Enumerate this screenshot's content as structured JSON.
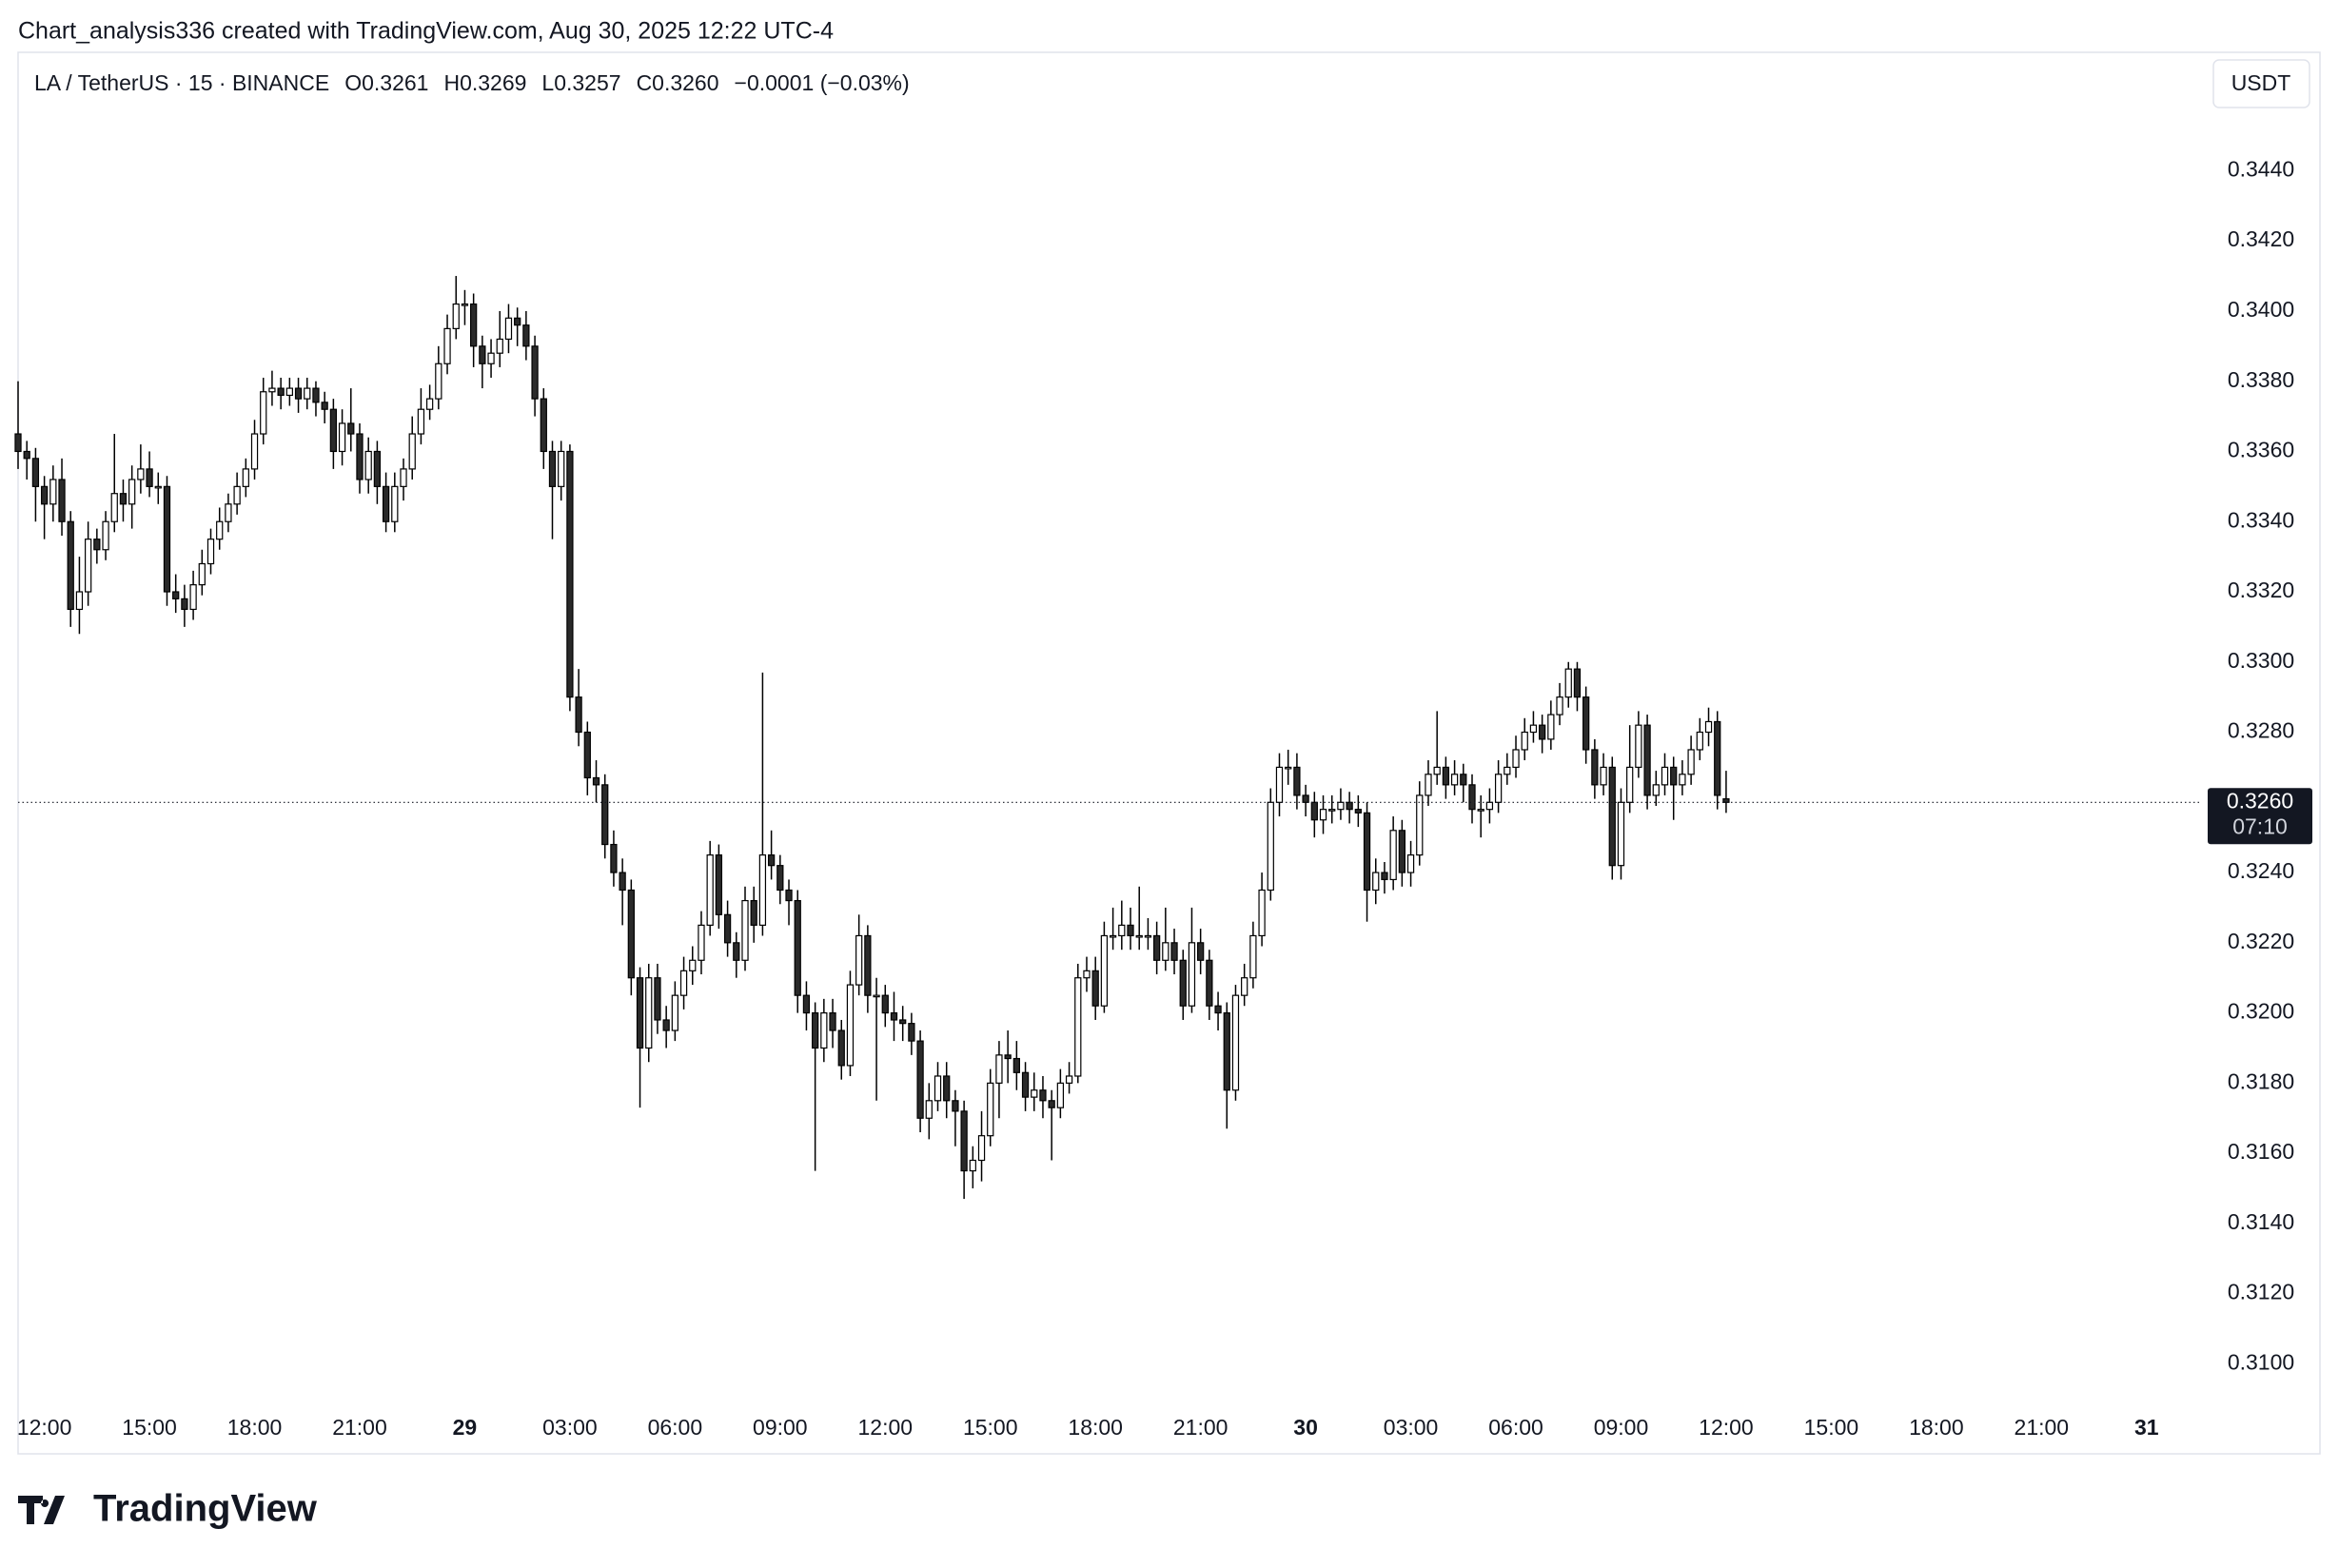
{
  "watermark": "Chart_analysis336 created with TradingView.com, Aug 30, 2025 12:22 UTC-4",
  "logo": "TradingView",
  "currency_button": "USDT",
  "legend": {
    "symbol": "LA / TetherUS · 15 · BINANCE",
    "open": "O0.3261",
    "high": "H0.3269",
    "low": "L0.3257",
    "close": "C0.3260",
    "change": "−0.0001 (−0.03%)"
  },
  "chart_data": {
    "type": "candlestick",
    "up_color": "#ffffff",
    "down_color": "#2a2a2a",
    "edge_color": "#000000",
    "grid": false,
    "xlim": [
      0,
      249
    ],
    "ylim": [
      0.3089,
      0.3474
    ],
    "last_price": {
      "value": 0.326,
      "label": "0.3260"
    },
    "countdown": "07:10",
    "yticks": [
      {
        "value": 0.31,
        "label": "0.3100"
      },
      {
        "value": 0.312,
        "label": "0.3120"
      },
      {
        "value": 0.314,
        "label": "0.3140"
      },
      {
        "value": 0.316,
        "label": "0.3160"
      },
      {
        "value": 0.318,
        "label": "0.3180"
      },
      {
        "value": 0.32,
        "label": "0.3200"
      },
      {
        "value": 0.322,
        "label": "0.3220"
      },
      {
        "value": 0.324,
        "label": "0.3240"
      },
      {
        "value": 0.328,
        "label": "0.3280"
      },
      {
        "value": 0.33,
        "label": "0.3300"
      },
      {
        "value": 0.332,
        "label": "0.3320"
      },
      {
        "value": 0.334,
        "label": "0.3340"
      },
      {
        "value": 0.336,
        "label": "0.3360"
      },
      {
        "value": 0.338,
        "label": "0.3380"
      },
      {
        "value": 0.34,
        "label": "0.3400"
      },
      {
        "value": 0.342,
        "label": "0.3420"
      },
      {
        "value": 0.344,
        "label": "0.3440"
      }
    ],
    "xticks": [
      {
        "value": 3,
        "label": "12:00"
      },
      {
        "value": 15,
        "label": "15:00"
      },
      {
        "value": 27,
        "label": "18:00"
      },
      {
        "value": 39,
        "label": "21:00"
      },
      {
        "value": 51,
        "label": "29"
      },
      {
        "value": 63,
        "label": "03:00"
      },
      {
        "value": 75,
        "label": "06:00"
      },
      {
        "value": 87,
        "label": "09:00"
      },
      {
        "value": 99,
        "label": "12:00"
      },
      {
        "value": 111,
        "label": "15:00"
      },
      {
        "value": 123,
        "label": "18:00"
      },
      {
        "value": 135,
        "label": "21:00"
      },
      {
        "value": 147,
        "label": "30"
      },
      {
        "value": 159,
        "label": "03:00"
      },
      {
        "value": 171,
        "label": "06:00"
      },
      {
        "value": 183,
        "label": "09:00"
      },
      {
        "value": 195,
        "label": "12:00"
      },
      {
        "value": 207,
        "label": "15:00"
      },
      {
        "value": 219,
        "label": "18:00"
      },
      {
        "value": 231,
        "label": "21:00"
      },
      {
        "value": 243,
        "label": "31"
      }
    ],
    "candles": [
      [
        0.3365,
        0.338,
        0.3355,
        0.336
      ],
      [
        0.336,
        0.3363,
        0.3352,
        0.3358
      ],
      [
        0.3358,
        0.3361,
        0.334,
        0.335
      ],
      [
        0.335,
        0.3353,
        0.3335,
        0.3345
      ],
      [
        0.3345,
        0.3356,
        0.334,
        0.3352
      ],
      [
        0.3352,
        0.3358,
        0.3336,
        0.334
      ],
      [
        0.334,
        0.3343,
        0.331,
        0.3315
      ],
      [
        0.3315,
        0.333,
        0.3308,
        0.332
      ],
      [
        0.332,
        0.334,
        0.3316,
        0.3335
      ],
      [
        0.3335,
        0.3338,
        0.3328,
        0.3332
      ],
      [
        0.3332,
        0.3343,
        0.3329,
        0.334
      ],
      [
        0.334,
        0.3365,
        0.3337,
        0.3348
      ],
      [
        0.3348,
        0.3352,
        0.334,
        0.3345
      ],
      [
        0.3345,
        0.3356,
        0.3338,
        0.3352
      ],
      [
        0.3352,
        0.3362,
        0.3348,
        0.3355
      ],
      [
        0.3355,
        0.336,
        0.3347,
        0.335
      ],
      [
        0.335,
        0.3354,
        0.3345,
        0.335
      ],
      [
        0.335,
        0.3353,
        0.3316,
        0.332
      ],
      [
        0.332,
        0.3325,
        0.3314,
        0.3318
      ],
      [
        0.3318,
        0.3322,
        0.331,
        0.3315
      ],
      [
        0.3315,
        0.3326,
        0.3312,
        0.3322
      ],
      [
        0.3322,
        0.3332,
        0.3319,
        0.3328
      ],
      [
        0.3328,
        0.3338,
        0.3325,
        0.3335
      ],
      [
        0.3335,
        0.3344,
        0.3332,
        0.334
      ],
      [
        0.334,
        0.3348,
        0.3337,
        0.3345
      ],
      [
        0.3345,
        0.3354,
        0.3342,
        0.335
      ],
      [
        0.335,
        0.3358,
        0.3347,
        0.3355
      ],
      [
        0.3355,
        0.3369,
        0.3352,
        0.3365
      ],
      [
        0.3365,
        0.3381,
        0.3362,
        0.3377
      ],
      [
        0.3377,
        0.3383,
        0.3373,
        0.3378
      ],
      [
        0.3378,
        0.3381,
        0.3372,
        0.3376
      ],
      [
        0.3376,
        0.3381,
        0.3373,
        0.3378
      ],
      [
        0.3378,
        0.3381,
        0.3371,
        0.3375
      ],
      [
        0.3375,
        0.3381,
        0.3372,
        0.3378
      ],
      [
        0.3378,
        0.338,
        0.337,
        0.3374
      ],
      [
        0.3374,
        0.3377,
        0.3368,
        0.3372
      ],
      [
        0.3372,
        0.3375,
        0.3355,
        0.336
      ],
      [
        0.336,
        0.3372,
        0.3356,
        0.3368
      ],
      [
        0.3368,
        0.3378,
        0.336,
        0.3365
      ],
      [
        0.3365,
        0.3368,
        0.3348,
        0.3352
      ],
      [
        0.3352,
        0.3364,
        0.3348,
        0.336
      ],
      [
        0.336,
        0.3363,
        0.3345,
        0.335
      ],
      [
        0.335,
        0.3354,
        0.3337,
        0.334
      ],
      [
        0.334,
        0.3354,
        0.3337,
        0.335
      ],
      [
        0.335,
        0.3358,
        0.3346,
        0.3355
      ],
      [
        0.3355,
        0.337,
        0.3352,
        0.3365
      ],
      [
        0.3365,
        0.3378,
        0.3362,
        0.3372
      ],
      [
        0.3372,
        0.3379,
        0.3369,
        0.3375
      ],
      [
        0.3375,
        0.339,
        0.3372,
        0.3385
      ],
      [
        0.3385,
        0.3399,
        0.3382,
        0.3395
      ],
      [
        0.3395,
        0.341,
        0.3392,
        0.3402
      ],
      [
        0.3402,
        0.3406,
        0.3396,
        0.3402
      ],
      [
        0.3402,
        0.3405,
        0.3384,
        0.339
      ],
      [
        0.339,
        0.3393,
        0.3378,
        0.3385
      ],
      [
        0.3385,
        0.3392,
        0.3381,
        0.3388
      ],
      [
        0.3388,
        0.34,
        0.3384,
        0.3392
      ],
      [
        0.3392,
        0.3402,
        0.3388,
        0.3398
      ],
      [
        0.3398,
        0.3401,
        0.339,
        0.3396
      ],
      [
        0.3396,
        0.34,
        0.3386,
        0.339
      ],
      [
        0.339,
        0.3393,
        0.337,
        0.3375
      ],
      [
        0.3375,
        0.3378,
        0.3355,
        0.336
      ],
      [
        0.336,
        0.3363,
        0.3335,
        0.335
      ],
      [
        0.335,
        0.3363,
        0.3346,
        0.336
      ],
      [
        0.336,
        0.3362,
        0.3286,
        0.329
      ],
      [
        0.329,
        0.3298,
        0.3276,
        0.328
      ],
      [
        0.328,
        0.3283,
        0.3262,
        0.3267
      ],
      [
        0.3267,
        0.3272,
        0.326,
        0.3265
      ],
      [
        0.3265,
        0.3268,
        0.3244,
        0.3248
      ],
      [
        0.3248,
        0.3252,
        0.3236,
        0.324
      ],
      [
        0.324,
        0.3244,
        0.3225,
        0.3235
      ],
      [
        0.3235,
        0.3238,
        0.3205,
        0.321
      ],
      [
        0.321,
        0.3213,
        0.3173,
        0.319
      ],
      [
        0.319,
        0.3214,
        0.3186,
        0.321
      ],
      [
        0.321,
        0.3214,
        0.3194,
        0.3198
      ],
      [
        0.3198,
        0.3202,
        0.319,
        0.3195
      ],
      [
        0.3195,
        0.3209,
        0.3192,
        0.3205
      ],
      [
        0.3205,
        0.3216,
        0.3201,
        0.3212
      ],
      [
        0.3212,
        0.3219,
        0.3208,
        0.3215
      ],
      [
        0.3215,
        0.3229,
        0.3211,
        0.3225
      ],
      [
        0.3225,
        0.3249,
        0.3222,
        0.3245
      ],
      [
        0.3245,
        0.3248,
        0.3224,
        0.3228
      ],
      [
        0.3228,
        0.3232,
        0.3216,
        0.322
      ],
      [
        0.322,
        0.3223,
        0.321,
        0.3215
      ],
      [
        0.3215,
        0.3236,
        0.3212,
        0.3232
      ],
      [
        0.3232,
        0.3236,
        0.322,
        0.3225
      ],
      [
        0.3225,
        0.3297,
        0.3222,
        0.3245
      ],
      [
        0.3245,
        0.3252,
        0.3238,
        0.3242
      ],
      [
        0.3242,
        0.3245,
        0.3231,
        0.3235
      ],
      [
        0.3235,
        0.3238,
        0.3225,
        0.3232
      ],
      [
        0.3232,
        0.3235,
        0.32,
        0.3205
      ],
      [
        0.3205,
        0.3209,
        0.3195,
        0.32
      ],
      [
        0.32,
        0.3203,
        0.3155,
        0.319
      ],
      [
        0.319,
        0.3204,
        0.3186,
        0.32
      ],
      [
        0.32,
        0.3204,
        0.319,
        0.3195
      ],
      [
        0.3195,
        0.3198,
        0.3181,
        0.3185
      ],
      [
        0.3185,
        0.3212,
        0.3182,
        0.3208
      ],
      [
        0.3208,
        0.3228,
        0.3205,
        0.3222
      ],
      [
        0.3222,
        0.3225,
        0.32,
        0.3205
      ],
      [
        0.3205,
        0.321,
        0.3175,
        0.3205
      ],
      [
        0.3205,
        0.3208,
        0.3196,
        0.32
      ],
      [
        0.32,
        0.3206,
        0.3192,
        0.3198
      ],
      [
        0.3198,
        0.3202,
        0.3192,
        0.3197
      ],
      [
        0.3197,
        0.32,
        0.3188,
        0.3192
      ],
      [
        0.3192,
        0.3195,
        0.3166,
        0.317
      ],
      [
        0.317,
        0.318,
        0.3164,
        0.3175
      ],
      [
        0.3175,
        0.3186,
        0.3172,
        0.3182
      ],
      [
        0.3182,
        0.3186,
        0.317,
        0.3175
      ],
      [
        0.3175,
        0.3178,
        0.3162,
        0.3172
      ],
      [
        0.3172,
        0.3175,
        0.3147,
        0.3155
      ],
      [
        0.3155,
        0.3162,
        0.315,
        0.3158
      ],
      [
        0.3158,
        0.3172,
        0.3152,
        0.3165
      ],
      [
        0.3165,
        0.3184,
        0.3162,
        0.318
      ],
      [
        0.318,
        0.3192,
        0.317,
        0.3188
      ],
      [
        0.3188,
        0.3195,
        0.318,
        0.3187
      ],
      [
        0.3187,
        0.3192,
        0.3178,
        0.3183
      ],
      [
        0.3183,
        0.3186,
        0.3172,
        0.3176
      ],
      [
        0.3176,
        0.3183,
        0.3172,
        0.3178
      ],
      [
        0.3178,
        0.3182,
        0.317,
        0.3175
      ],
      [
        0.3175,
        0.3178,
        0.3158,
        0.3173
      ],
      [
        0.3173,
        0.3184,
        0.317,
        0.318
      ],
      [
        0.318,
        0.3186,
        0.3177,
        0.3182
      ],
      [
        0.3182,
        0.3214,
        0.318,
        0.321
      ],
      [
        0.321,
        0.3216,
        0.3206,
        0.3212
      ],
      [
        0.3212,
        0.3216,
        0.3198,
        0.3202
      ],
      [
        0.3202,
        0.3226,
        0.32,
        0.3222
      ],
      [
        0.3222,
        0.323,
        0.3218,
        0.3222
      ],
      [
        0.3222,
        0.3232,
        0.3218,
        0.3225
      ],
      [
        0.3225,
        0.323,
        0.3218,
        0.3222
      ],
      [
        0.3222,
        0.3236,
        0.3218,
        0.3222
      ],
      [
        0.3222,
        0.3227,
        0.3218,
        0.3222
      ],
      [
        0.3222,
        0.3226,
        0.3211,
        0.3215
      ],
      [
        0.3215,
        0.323,
        0.3212,
        0.322
      ],
      [
        0.322,
        0.3224,
        0.3211,
        0.3215
      ],
      [
        0.3215,
        0.3218,
        0.3198,
        0.3202
      ],
      [
        0.3202,
        0.323,
        0.32,
        0.322
      ],
      [
        0.322,
        0.3224,
        0.3211,
        0.3215
      ],
      [
        0.3215,
        0.3218,
        0.3198,
        0.3202
      ],
      [
        0.3202,
        0.3206,
        0.3195,
        0.32
      ],
      [
        0.32,
        0.3203,
        0.3167,
        0.3178
      ],
      [
        0.3178,
        0.3208,
        0.3175,
        0.3205
      ],
      [
        0.3205,
        0.3214,
        0.3202,
        0.321
      ],
      [
        0.321,
        0.3226,
        0.3207,
        0.3222
      ],
      [
        0.3222,
        0.324,
        0.3219,
        0.3235
      ],
      [
        0.3235,
        0.3264,
        0.3232,
        0.326
      ],
      [
        0.326,
        0.3274,
        0.3256,
        0.327
      ],
      [
        0.327,
        0.3275,
        0.3265,
        0.327
      ],
      [
        0.327,
        0.3274,
        0.3258,
        0.3262
      ],
      [
        0.3262,
        0.3265,
        0.3256,
        0.326
      ],
      [
        0.326,
        0.3263,
        0.325,
        0.3255
      ],
      [
        0.3255,
        0.3262,
        0.3251,
        0.3258
      ],
      [
        0.3258,
        0.3262,
        0.3254,
        0.3258
      ],
      [
        0.3258,
        0.3264,
        0.3255,
        0.326
      ],
      [
        0.326,
        0.3263,
        0.3254,
        0.3258
      ],
      [
        0.3258,
        0.3262,
        0.3253,
        0.3257
      ],
      [
        0.3257,
        0.326,
        0.3226,
        0.3235
      ],
      [
        0.3235,
        0.3244,
        0.3231,
        0.324
      ],
      [
        0.324,
        0.3243,
        0.3234,
        0.3238
      ],
      [
        0.3238,
        0.3256,
        0.3235,
        0.3252
      ],
      [
        0.3252,
        0.3255,
        0.3236,
        0.324
      ],
      [
        0.324,
        0.3249,
        0.3236,
        0.3245
      ],
      [
        0.3245,
        0.3266,
        0.3242,
        0.3262
      ],
      [
        0.3262,
        0.3272,
        0.3259,
        0.3268
      ],
      [
        0.3268,
        0.3286,
        0.3265,
        0.327
      ],
      [
        0.327,
        0.3273,
        0.3261,
        0.3265
      ],
      [
        0.3265,
        0.3272,
        0.3262,
        0.3268
      ],
      [
        0.3268,
        0.3271,
        0.326,
        0.3265
      ],
      [
        0.3265,
        0.3268,
        0.3254,
        0.3258
      ],
      [
        0.3258,
        0.3262,
        0.325,
        0.3258
      ],
      [
        0.3258,
        0.3264,
        0.3254,
        0.326
      ],
      [
        0.326,
        0.3272,
        0.3257,
        0.3268
      ],
      [
        0.3268,
        0.3274,
        0.3265,
        0.327
      ],
      [
        0.327,
        0.3279,
        0.3267,
        0.3275
      ],
      [
        0.3275,
        0.3284,
        0.3272,
        0.328
      ],
      [
        0.328,
        0.3286,
        0.3277,
        0.3282
      ],
      [
        0.3282,
        0.3285,
        0.3274,
        0.3278
      ],
      [
        0.3278,
        0.3289,
        0.3275,
        0.3285
      ],
      [
        0.3285,
        0.3294,
        0.3282,
        0.329
      ],
      [
        0.329,
        0.33,
        0.3287,
        0.3298
      ],
      [
        0.3298,
        0.33,
        0.3286,
        0.329
      ],
      [
        0.329,
        0.3293,
        0.3271,
        0.3275
      ],
      [
        0.3275,
        0.3278,
        0.3261,
        0.3265
      ],
      [
        0.3265,
        0.3274,
        0.3262,
        0.327
      ],
      [
        0.327,
        0.3273,
        0.3238,
        0.3242
      ],
      [
        0.3242,
        0.3264,
        0.3238,
        0.326
      ],
      [
        0.326,
        0.3282,
        0.3257,
        0.327
      ],
      [
        0.327,
        0.3286,
        0.3267,
        0.3282
      ],
      [
        0.3282,
        0.3285,
        0.3258,
        0.3262
      ],
      [
        0.3262,
        0.3269,
        0.3259,
        0.3265
      ],
      [
        0.3265,
        0.3274,
        0.3262,
        0.327
      ],
      [
        0.327,
        0.3273,
        0.3255,
        0.3265
      ],
      [
        0.3265,
        0.3272,
        0.3262,
        0.3268
      ],
      [
        0.3268,
        0.3279,
        0.3265,
        0.3275
      ],
      [
        0.3275,
        0.3284,
        0.3272,
        0.328
      ],
      [
        0.328,
        0.3287,
        0.3276,
        0.3283
      ],
      [
        0.3283,
        0.3286,
        0.3258,
        0.3262
      ],
      [
        0.3261,
        0.3269,
        0.3257,
        0.326
      ]
    ]
  }
}
